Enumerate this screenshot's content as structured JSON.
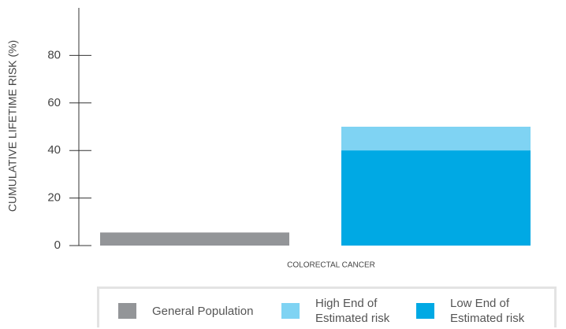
{
  "chart_data": {
    "type": "bar",
    "y_label": "CUMULATIVE LIFETIME RISK (%)",
    "categories": [
      "COLORECTAL CANCER"
    ],
    "series": [
      {
        "name": "General Population",
        "color": "#939598",
        "values": [
          5.5
        ]
      },
      {
        "name": "High End of Estimated risk",
        "color": "#7fd3f3",
        "values": [
          50
        ]
      },
      {
        "name": "Low End of Estimated risk",
        "color": "#00a9e4",
        "values": [
          40
        ]
      }
    ],
    "ylim": [
      0,
      100
    ],
    "yticks": [
      0,
      20,
      40,
      60,
      80
    ]
  }
}
